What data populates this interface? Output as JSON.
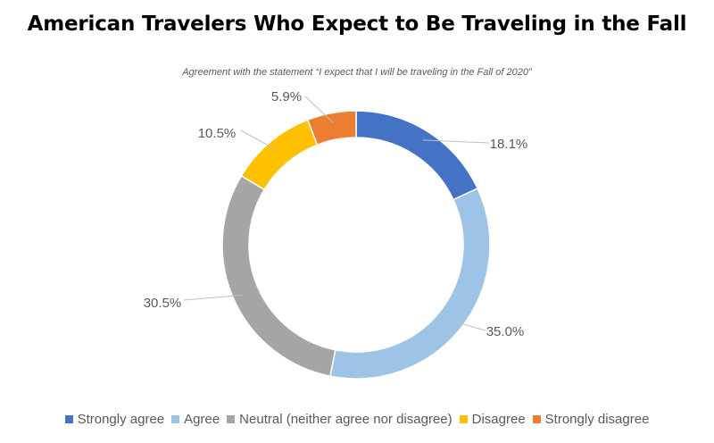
{
  "chart_data": {
    "type": "pie",
    "subtype": "donut",
    "title": "American Travelers Who Expect to Be Traveling in the Fall",
    "subtitle": "Agreement with the statement “I expect that I will be traveling in the Fall of 2020”",
    "categories": [
      "Strongly agree",
      "Agree",
      "Neutral (neither agree nor disagree)",
      "Disagree",
      "Strongly disagree"
    ],
    "values": [
      18.1,
      35.0,
      30.5,
      10.5,
      5.9
    ],
    "labels": [
      "18.1%",
      "35.0%",
      "30.5%",
      "10.5%",
      "5.9%"
    ],
    "colors": [
      "#4472c4",
      "#9dc3e6",
      "#a5a5a5",
      "#ffc000",
      "#ed7d31"
    ],
    "legend": "bottom"
  }
}
